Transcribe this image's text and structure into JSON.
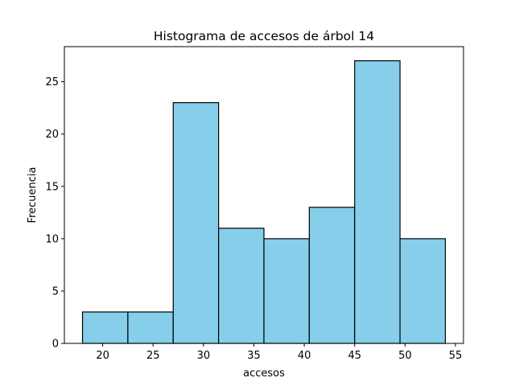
{
  "chart_data": {
    "type": "bar",
    "title": "Histograma de accesos de árbol 14",
    "xlabel": "accesos",
    "ylabel": "Frecuencia",
    "bin_edges": [
      18.0,
      22.5,
      27.0,
      31.5,
      36.0,
      40.5,
      45.0,
      49.5,
      54.0
    ],
    "values": [
      3,
      3,
      23,
      11,
      10,
      13,
      27,
      10
    ],
    "xlim": [
      16.2,
      55.8
    ],
    "ylim": [
      0,
      28.35
    ],
    "xticks": [
      20,
      25,
      30,
      35,
      40,
      45,
      50,
      55
    ],
    "yticks": [
      0,
      5,
      10,
      15,
      20,
      25
    ],
    "bar_color": "#87ceeb",
    "edge_color": "#000000",
    "grid": false
  }
}
